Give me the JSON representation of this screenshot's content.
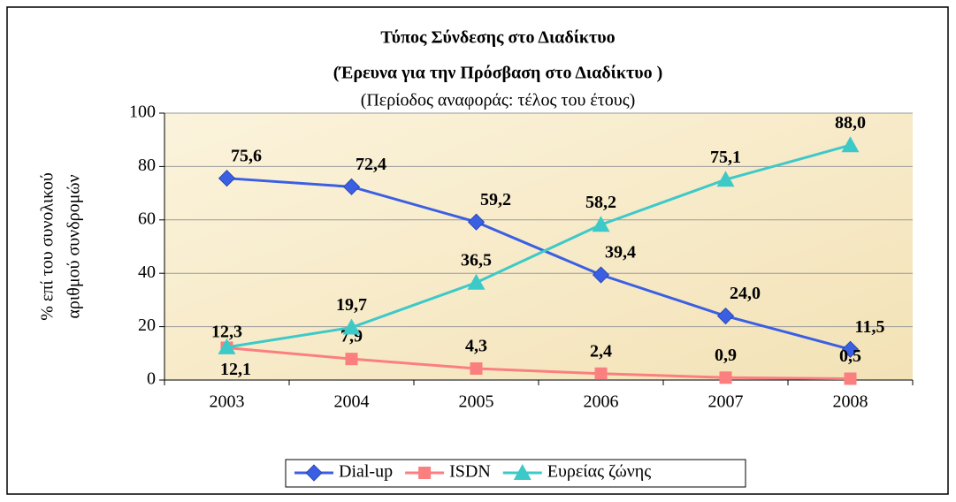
{
  "chart_data": {
    "type": "line",
    "title": "Τύπος Σύνδεσης στο Διαδίκτυο",
    "title2": "(Έρευνα για την Πρόσβαση στο Διαδίκτυο )",
    "subtitle": "(Περίοδος αναφοράς: τέλος του έτους)",
    "ylabel": [
      "% επί του συνολικού",
      "αριθμού συνδρομών"
    ],
    "categories": [
      "2003",
      "2004",
      "2005",
      "2006",
      "2007",
      "2008"
    ],
    "series": [
      {
        "name": "Dial-up",
        "color": "#3b5fe3",
        "marker": "diamond",
        "values": [
          75.6,
          72.4,
          59.2,
          39.4,
          24.0,
          11.5
        ],
        "value_labels": [
          "75,6",
          "72,4",
          "59,2",
          "39,4",
          "24,0",
          "11,5"
        ]
      },
      {
        "name": "ISDN",
        "color": "#fb7f7f",
        "marker": "square",
        "values": [
          12.1,
          7.9,
          4.3,
          2.4,
          0.9,
          0.5
        ],
        "value_labels": [
          "12,1",
          "7,9",
          "4,3",
          "2,4",
          "0,9",
          "0,5"
        ]
      },
      {
        "name": "Ευρείας ζώνης",
        "color": "#3ec9c9",
        "marker": "triangle",
        "values": [
          12.3,
          19.7,
          36.5,
          58.2,
          75.1,
          88.0
        ],
        "value_labels": [
          "12,3",
          "19,7",
          "36,5",
          "58,2",
          "75,1",
          "88,0"
        ]
      }
    ],
    "ylim": [
      0,
      100
    ],
    "yticks": [
      0,
      20,
      40,
      60,
      80,
      100
    ],
    "grid": true,
    "legend": "bottom"
  }
}
